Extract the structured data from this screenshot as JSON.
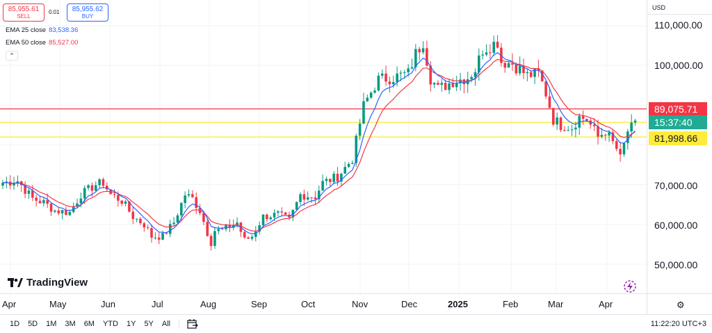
{
  "colors": {
    "up": "#089981",
    "down": "#f23645",
    "ema25": "#2962ff",
    "ema50": "#f23645",
    "line_red": "#f23645",
    "line_yellow": "#ffeb3b",
    "countdown": "#22ab94"
  },
  "trade": {
    "sell_price": "85,955.61",
    "sell_label": "SELL",
    "buy_price": "85,955.62",
    "buy_label": "BUY",
    "spread": "0.01"
  },
  "indicators": {
    "ema25_label": "EMA 25 close",
    "ema25_value": "83,538.36",
    "ema50_label": "EMA 50 close",
    "ema50_value": "85,527.00",
    "collapse_icon": "chevron-up-icon"
  },
  "price_axis": {
    "currency": "USD",
    "labels": [
      "110,000.00",
      "100,000.00",
      "70,000.00",
      "60,000.00",
      "50,000.00"
    ],
    "tag_red": "89,075.71",
    "tag_countdown": "15:37:40",
    "tag_yellow": "81,998.66"
  },
  "time_axis": {
    "labels": [
      "Apr",
      "May",
      "Jun",
      "Jul",
      "Aug",
      "Sep",
      "Oct",
      "Nov",
      "Dec",
      "2025",
      "Feb",
      "Mar",
      "Apr"
    ]
  },
  "bottom": {
    "ranges": [
      "1D",
      "5D",
      "1M",
      "3M",
      "6M",
      "YTD",
      "1Y",
      "5Y",
      "All"
    ],
    "clock": "11:22:20 UTC+3"
  },
  "logo": {
    "text": "TradingView"
  },
  "chart_data": {
    "type": "candlestick",
    "ylim": [
      43000,
      114000
    ],
    "horizontal_lines": [
      89075.71,
      85700,
      81998.66
    ],
    "ema_legend": [
      "EMA 25 close",
      "EMA 50 close"
    ],
    "x_months": [
      "Apr",
      "May",
      "Jun",
      "Jul",
      "Aug",
      "Sep",
      "Oct",
      "Nov",
      "Dec",
      "2025",
      "Feb",
      "Mar",
      "Apr"
    ],
    "close_path": [
      [
        0,
        70500
      ],
      [
        4,
        71000
      ],
      [
        8,
        66500
      ],
      [
        11,
        65500
      ],
      [
        14,
        63500
      ],
      [
        18,
        63000
      ],
      [
        21,
        67500
      ],
      [
        25,
        70000
      ],
      [
        27,
        70500
      ],
      [
        29,
        67500
      ],
      [
        32,
        66000
      ],
      [
        35,
        62000
      ],
      [
        38,
        60000
      ],
      [
        40,
        57000
      ],
      [
        43,
        57000
      ],
      [
        46,
        60500
      ],
      [
        49,
        67500
      ],
      [
        51,
        66500
      ],
      [
        53,
        63500
      ],
      [
        55,
        58000
      ],
      [
        56,
        55500
      ],
      [
        57,
        58500
      ],
      [
        59,
        58500
      ],
      [
        61,
        59500
      ],
      [
        63,
        60500
      ],
      [
        65,
        56000
      ],
      [
        67,
        57000
      ],
      [
        70,
        62000
      ],
      [
        74,
        62500
      ],
      [
        77,
        61000
      ],
      [
        80,
        67500
      ],
      [
        84,
        67000
      ],
      [
        86,
        70500
      ],
      [
        90,
        72000
      ],
      [
        94,
        76500
      ],
      [
        97,
        90000
      ],
      [
        101,
        96500
      ],
      [
        105,
        97000
      ],
      [
        109,
        98000
      ],
      [
        111,
        103000
      ],
      [
        113,
        106000
      ],
      [
        115,
        97000
      ],
      [
        117,
        94000
      ],
      [
        121,
        96000
      ],
      [
        125,
        97000
      ],
      [
        127,
        99000
      ],
      [
        129,
        104000
      ],
      [
        131,
        105000
      ],
      [
        133,
        106000
      ],
      [
        134,
        101000
      ],
      [
        137,
        100500
      ],
      [
        141,
        97500
      ],
      [
        144,
        98000
      ],
      [
        146,
        93000
      ],
      [
        148,
        86500
      ],
      [
        150,
        85000
      ],
      [
        153,
        84500
      ],
      [
        155,
        87000
      ],
      [
        157,
        86500
      ],
      [
        160,
        82000
      ],
      [
        162,
        83500
      ],
      [
        165,
        79000
      ],
      [
        166,
        76500
      ],
      [
        168,
        83500
      ],
      [
        170,
        85000
      ]
    ]
  }
}
